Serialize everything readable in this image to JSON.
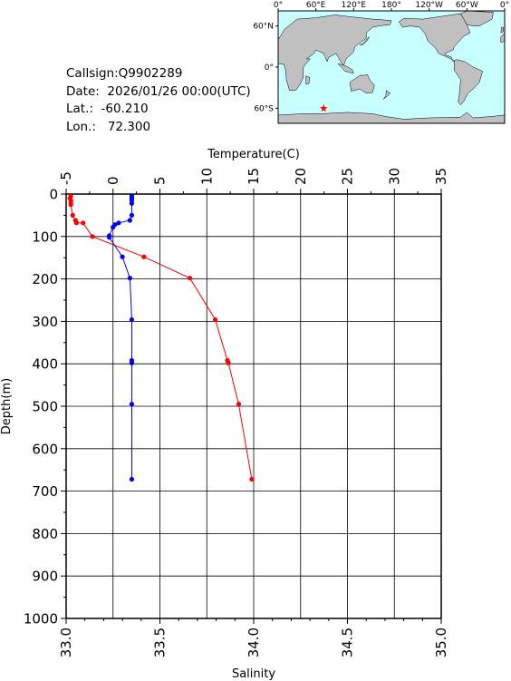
{
  "info": {
    "callsign": "Callsign:Q9902289",
    "date": "Date:  2026/01/26 00:00(UTC)",
    "lat": "Lat.:  -60.210",
    "lon": "Lon.:   72.300"
  },
  "map": {
    "top_ticks": [
      "0°",
      "60°E",
      "120°E",
      "180°",
      "120°W",
      "60°W",
      "0°"
    ],
    "side_ticks": [
      "60°N",
      "0°",
      "60°S"
    ],
    "ocean_color": "#c8ffff",
    "land_color": "#c0c0c0",
    "marker_color": "#ff0000",
    "marker": {
      "lon": 72.3,
      "lat": -60.21
    }
  },
  "chart_data": {
    "type": "line",
    "x_top_label": "Temperature(C)",
    "x_bottom_label": "Salinity",
    "y_label": "Depth(m)",
    "temp_ticks": [
      "-5",
      "0",
      "5",
      "10",
      "15",
      "20",
      "25",
      "30",
      "35"
    ],
    "sal_ticks": [
      "33.0",
      "33.5",
      "34.0",
      "34.5",
      "35.0"
    ],
    "depth_ticks": [
      "0",
      "100",
      "200",
      "300",
      "400",
      "500",
      "600",
      "700",
      "800",
      "900",
      "1000"
    ],
    "temp_range": [
      -5,
      35
    ],
    "sal_range": [
      33.0,
      35.0
    ],
    "depth_range": [
      0,
      1000
    ],
    "grid": true,
    "series": [
      {
        "name": "Temperature",
        "axis": "temperature",
        "color": "#ff0000",
        "points": [
          [
            -4.5,
            5
          ],
          [
            -4.6,
            10
          ],
          [
            -4.5,
            15
          ],
          [
            -4.5,
            20
          ],
          [
            -4.5,
            25
          ],
          [
            -4.3,
            50
          ],
          [
            -4.0,
            62
          ],
          [
            -3.9,
            68
          ],
          [
            -3.2,
            68
          ],
          [
            -2.2,
            100
          ],
          [
            3.3,
            148
          ],
          [
            8.2,
            198
          ],
          [
            10.9,
            296
          ],
          [
            12.2,
            392
          ],
          [
            12.3,
            398
          ],
          [
            13.4,
            495
          ],
          [
            14.8,
            672
          ]
        ]
      },
      {
        "name": "Salinity",
        "axis": "salinity",
        "color": "#0000ff",
        "points": [
          [
            33.35,
            5
          ],
          [
            33.35,
            10
          ],
          [
            33.35,
            15
          ],
          [
            33.35,
            22
          ],
          [
            33.35,
            50
          ],
          [
            33.34,
            62
          ],
          [
            33.28,
            68
          ],
          [
            33.26,
            72
          ],
          [
            33.25,
            78
          ],
          [
            33.23,
            98
          ],
          [
            33.23,
            102
          ],
          [
            33.3,
            148
          ],
          [
            33.34,
            198
          ],
          [
            33.35,
            296
          ],
          [
            33.35,
            392
          ],
          [
            33.35,
            398
          ],
          [
            33.35,
            495
          ],
          [
            33.35,
            672
          ]
        ]
      }
    ]
  }
}
